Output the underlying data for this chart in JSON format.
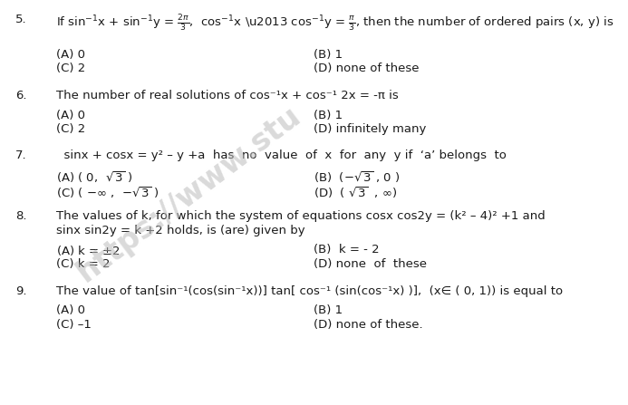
{
  "bg_color": "#ffffff",
  "text_color": "#1a1a1a",
  "figsize": [
    6.93,
    4.47
  ],
  "dpi": 100,
  "font_family": "DejaVu Sans",
  "fs": 9.5,
  "q5_q": "If sin⁻¹x + sin⁻¹y = 2π/3,  cos⁻¹x – cos⁻¹y = π/3, then the number of ordered pairs (x, y) is",
  "q6_q": "The number of real solutions of cos⁻¹x + cos⁻¹ 2x = -π is",
  "q7_q": "  sinx + cosx = y² – y +a  has  no  value  of  x  for  any  y if  ‘a’ belongs  to",
  "q8_q1": "The values of k, for which the system of equations cosx cos2y = (k² – 4)² +1 and",
  "q8_q2": "sinx sin2y = k +2 holds, is (are) given by",
  "q9_q": "The value of tan[sin⁻¹(cos(sin⁻¹x))] tan[ cos⁻¹ (sin(cos⁻¹x) )],  (x∈ ( 0, 1)) is equal to"
}
